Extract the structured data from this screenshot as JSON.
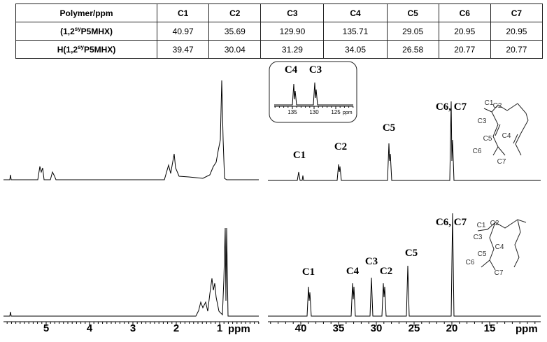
{
  "table": {
    "header": [
      "Polymer/ppm",
      "C1",
      "C2",
      "C3",
      "C4",
      "C5",
      "C6",
      "C7"
    ],
    "rows": [
      {
        "label": {
          "prefix": "(1,2",
          "sup": "sy",
          "suffix": "P5MHX)"
        },
        "cells": [
          "40.97",
          "35.69",
          "129.90",
          "135.71",
          "29.05",
          "20.95",
          "20.95"
        ]
      },
      {
        "label": {
          "prefix": "H(1,2",
          "sup": "sy",
          "suffix": "P5MHX)"
        },
        "cells": [
          "39.47",
          "30.04",
          "31.29",
          "34.05",
          "26.58",
          "20.77",
          "20.77"
        ]
      }
    ]
  },
  "h_spectrum": {
    "xticks": [
      5,
      4,
      3,
      2,
      1
    ],
    "axis_label": "ppm"
  },
  "c_spectrum": {
    "xticks": [
      40,
      35,
      30,
      25,
      20,
      15
    ],
    "axis_label": "ppm",
    "top_labels": [
      "C1",
      "C2",
      "C5",
      "C6, C7"
    ],
    "bottom_labels": [
      "C1",
      "C4",
      "C3",
      "C2",
      "C5",
      "C6, C7"
    ],
    "inset": {
      "labels": [
        "C4",
        "C3"
      ],
      "xticks": [
        135,
        130,
        125
      ],
      "axis_label": "ppm"
    }
  },
  "structures": [
    {
      "labels": [
        "C1",
        "C2",
        "C3",
        "C4",
        "C5",
        "C6",
        "C7"
      ]
    },
    {
      "labels": [
        "C1",
        "C2",
        "C3",
        "C4",
        "C5",
        "C6",
        "C7"
      ]
    }
  ]
}
